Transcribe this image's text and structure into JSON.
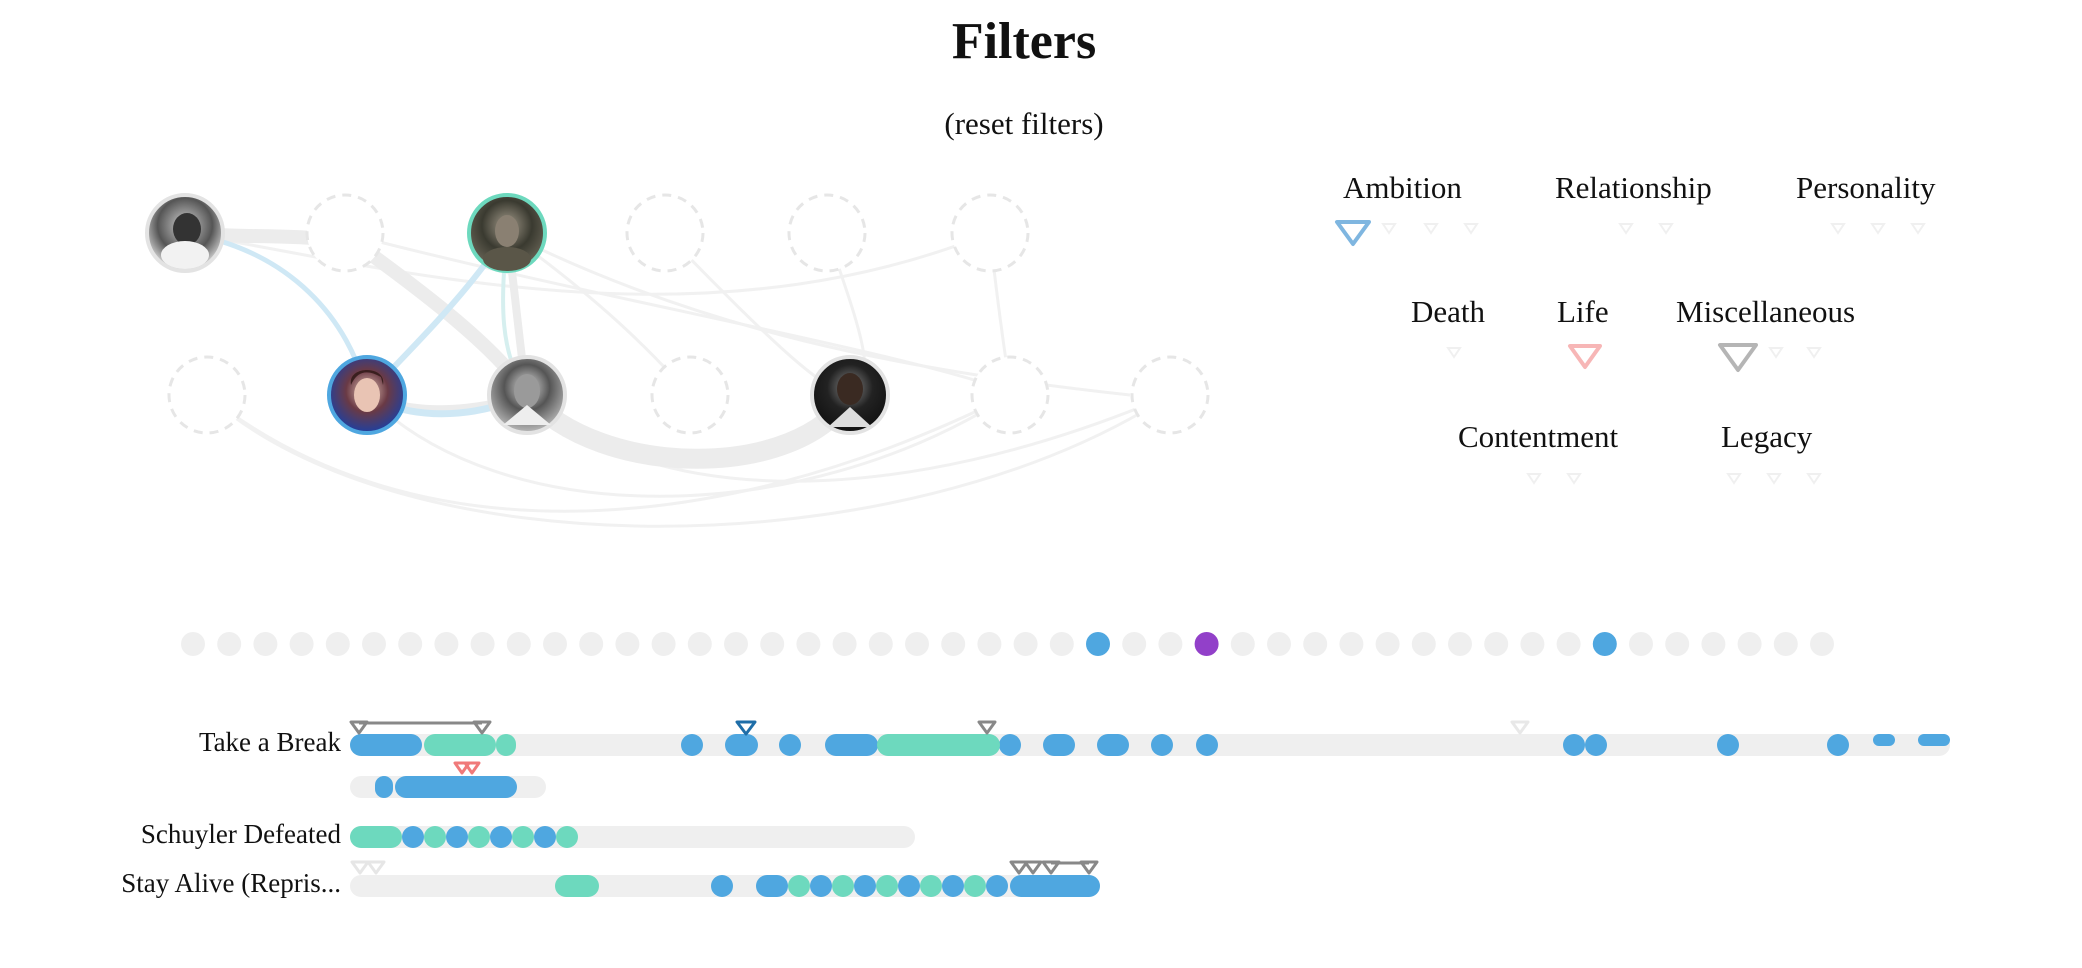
{
  "title": "Filters",
  "reset_label": "(reset filters)",
  "colors": {
    "blue": "#4fa7e0",
    "teal": "#6dd9be",
    "purple": "#9240c9",
    "gray": "#efefef",
    "dark_gray": "#888888",
    "pink": "#f4a3a3",
    "dark_blue": "#1f6ea8",
    "light_blue": "#7fb6e0"
  },
  "themes": [
    {
      "label": "Ambition",
      "marker": "blue-triangle-icon"
    },
    {
      "label": "Relationship",
      "marker": "none"
    },
    {
      "label": "Personality",
      "marker": "none"
    },
    {
      "label": "Death",
      "marker": "none"
    },
    {
      "label": "Life",
      "marker": "pink-triangle-icon"
    },
    {
      "label": "Miscellaneous",
      "marker": "gray-triangle-icon"
    },
    {
      "label": "Contentment",
      "marker": "none"
    },
    {
      "label": "Legacy",
      "marker": "none"
    }
  ],
  "characters": [
    {
      "name": "character-1",
      "active": true,
      "highlight": "none"
    },
    {
      "name": "character-2",
      "active": false,
      "highlight": "none"
    },
    {
      "name": "character-3",
      "active": true,
      "highlight": "teal"
    },
    {
      "name": "character-4",
      "active": false,
      "highlight": "none"
    },
    {
      "name": "character-5",
      "active": false,
      "highlight": "none"
    },
    {
      "name": "character-6",
      "active": false,
      "highlight": "none"
    },
    {
      "name": "character-7",
      "active": false,
      "highlight": "none"
    },
    {
      "name": "character-8",
      "active": true,
      "highlight": "blue"
    },
    {
      "name": "character-9",
      "active": true,
      "highlight": "none"
    },
    {
      "name": "character-10",
      "active": false,
      "highlight": "none"
    },
    {
      "name": "character-11",
      "active": true,
      "highlight": "none"
    },
    {
      "name": "character-12",
      "active": false,
      "highlight": "none"
    },
    {
      "name": "character-13",
      "active": false,
      "highlight": "none"
    }
  ],
  "song_dots": {
    "count": 46,
    "highlighted": [
      {
        "index": 25,
        "color": "blue"
      },
      {
        "index": 28,
        "color": "purple"
      },
      {
        "index": 39,
        "color": "blue"
      }
    ]
  },
  "songs": [
    {
      "title": "Take a Break"
    },
    {
      "title": "Schuyler Defeated"
    },
    {
      "title": "Stay Alive (Repris..."
    }
  ]
}
